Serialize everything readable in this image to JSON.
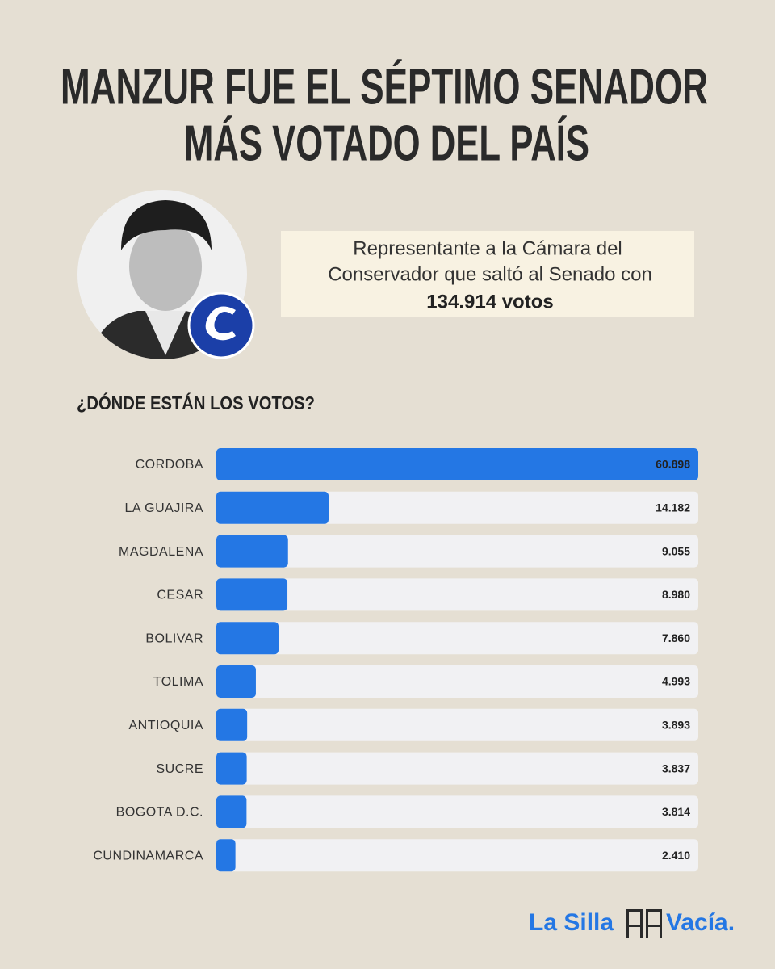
{
  "header": {
    "title_lines": [
      "MANZUR FUE EL SÉPTIMO SENADOR",
      "MÁS VOTADO DEL PAÍS"
    ],
    "description_lines": [
      "Representante a la Cámara del",
      "Conservador que saltó al Senado con"
    ],
    "description_highlight": "134.914 votos"
  },
  "chart_data": {
    "type": "bar",
    "orientation": "horizontal",
    "title": "¿DÓNDE ESTÁN LOS VOTOS?",
    "categories": [
      "CORDOBA",
      "LA GUAJIRA",
      "MAGDALENA",
      "CESAR",
      "BOLIVAR",
      "TOLIMA",
      "ANTIOQUIA",
      "SUCRE",
      "BOGOTA D.C.",
      "CUNDINAMARCA"
    ],
    "values": [
      60898,
      14182,
      9055,
      8980,
      7860,
      4993,
      3893,
      3837,
      3814,
      2410
    ],
    "value_labels": [
      "60.898",
      "14.182",
      "9.055",
      "8.980",
      "7.860",
      "4.993",
      "3.893",
      "3.837",
      "3.814",
      "2.410"
    ],
    "color": "#2477e4",
    "xlim": [
      0,
      60898
    ]
  },
  "footer": {
    "brand_left": "La Silla",
    "brand_right": "Vacía."
  }
}
